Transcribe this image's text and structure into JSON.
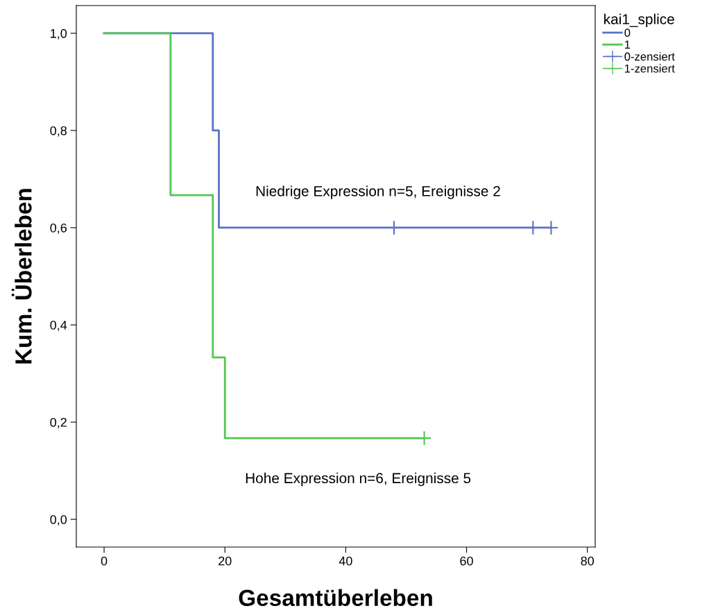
{
  "chart_data": {
    "type": "step",
    "xlabel": "Gesamtüberleben",
    "ylabel": "Kum. Überleben",
    "legend_title": "kai1_splice",
    "legend": "right",
    "grid": false,
    "xlim": [
      -4.6,
      81.3
    ],
    "ylim": [
      -0.057,
      1.057
    ],
    "xticks": [
      0,
      20,
      40,
      60,
      80
    ],
    "yticks": [
      {
        "value": 0.0,
        "label": "0,0"
      },
      {
        "value": 0.2,
        "label": "0,2"
      },
      {
        "value": 0.4,
        "label": "0,4"
      },
      {
        "value": 0.6,
        "label": "0,6"
      },
      {
        "value": 0.8,
        "label": "0,8"
      },
      {
        "value": 1.0,
        "label": "1,0"
      }
    ],
    "series": [
      {
        "name": "0",
        "color": "#5a6fc4",
        "x": [
          0,
          18,
          19,
          74
        ],
        "values": [
          1.0,
          0.8,
          0.6,
          0.6
        ]
      },
      {
        "name": "1",
        "color": "#52c652",
        "x": [
          0,
          11,
          18,
          20,
          53
        ],
        "values": [
          1.0,
          0.667,
          0.333,
          0.167,
          0.167
        ]
      },
      {
        "name": "0-zensiert",
        "type": "scatter",
        "marker": "cross",
        "color": "#5a6fc4",
        "x": [
          48,
          71,
          74
        ],
        "values": [
          0.6,
          0.6,
          0.6
        ]
      },
      {
        "name": "1-zensiert",
        "type": "scatter",
        "marker": "cross",
        "color": "#52c652",
        "x": [
          53
        ],
        "values": [
          0.167
        ]
      }
    ],
    "annotations": [
      "Niedrige Expression n=5, Ereignisse 2",
      "Hohe Expression n=6, Ereignisse 5"
    ]
  }
}
